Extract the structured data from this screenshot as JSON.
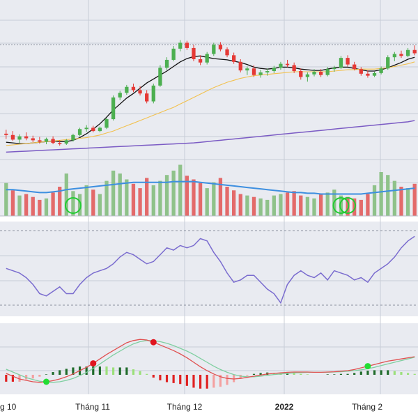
{
  "colors": {
    "panel_bg": "#e9ebf1",
    "grid": "#c8ccd6",
    "up": "#4caf50",
    "down": "#e53935",
    "vol_up": "#8fc28a",
    "vol_down": "#e36a6a",
    "ma_short": "#111111",
    "ma_mid": "#f2c14e",
    "ma_long": "#7b5bc4",
    "vol_ma": "#3d8fe0",
    "rsi": "#7a6ccf",
    "macd": "#e05050",
    "signal": "#7fcfa0",
    "dot_red": "#e0141e",
    "dot_green": "#22dd33",
    "circle": "#22cc33"
  },
  "chart_data": [
    {
      "type": "candlestick",
      "panel": "price",
      "x_labels": [
        "g 10",
        "Tháng 11",
        "Tháng 12",
        "2022",
        "Tháng 2"
      ],
      "grid": true,
      "candles": [
        [
          56,
          56.6,
          55.2,
          55.8
        ],
        [
          55.8,
          56.4,
          54.9,
          55.1
        ],
        [
          55.1,
          55.9,
          54.6,
          55.6
        ],
        [
          55.6,
          56.2,
          55.0,
          55.3
        ],
        [
          55.3,
          55.7,
          54.7,
          55.0
        ],
        [
          55.0,
          55.5,
          54.5,
          54.8
        ],
        [
          54.8,
          55.4,
          54.4,
          55.2
        ],
        [
          55.2,
          55.6,
          54.4,
          54.6
        ],
        [
          54.6,
          55.0,
          54.2,
          54.5
        ],
        [
          54.5,
          55.2,
          54.3,
          55.0
        ],
        [
          55.0,
          56.0,
          54.8,
          55.8
        ],
        [
          55.8,
          56.9,
          55.6,
          56.7
        ],
        [
          56.7,
          57.3,
          56.3,
          56.9
        ],
        [
          56.9,
          57.2,
          56.2,
          56.4
        ],
        [
          56.4,
          57.1,
          56.2,
          56.9
        ],
        [
          56.9,
          58.4,
          56.7,
          58.2
        ],
        [
          58.2,
          61.8,
          58.0,
          61.5
        ],
        [
          61.5,
          62.5,
          61.1,
          62.2
        ],
        [
          62.2,
          63.4,
          61.9,
          63.1
        ],
        [
          63.1,
          63.6,
          62.3,
          62.6
        ],
        [
          62.6,
          63.2,
          61.8,
          62.1
        ],
        [
          62.1,
          62.6,
          60.6,
          60.9
        ],
        [
          60.9,
          63.6,
          60.6,
          63.3
        ],
        [
          63.3,
          66.4,
          63.1,
          66.0
        ],
        [
          66.0,
          67.6,
          65.7,
          67.2
        ],
        [
          67.2,
          69.3,
          67.0,
          68.9
        ],
        [
          68.9,
          70.2,
          68.5,
          69.8
        ],
        [
          69.8,
          70.1,
          68.7,
          69.0
        ],
        [
          69.0,
          69.5,
          67.0,
          67.3
        ],
        [
          67.3,
          67.9,
          66.4,
          66.8
        ],
        [
          66.8,
          68.4,
          66.5,
          68.1
        ],
        [
          68.1,
          69.8,
          67.8,
          69.5
        ],
        [
          69.5,
          69.9,
          68.5,
          68.8
        ],
        [
          68.8,
          69.1,
          67.6,
          67.9
        ],
        [
          67.9,
          68.3,
          66.6,
          66.9
        ],
        [
          66.9,
          67.3,
          65.3,
          65.6
        ],
        [
          65.6,
          66.2,
          64.9,
          65.9
        ],
        [
          65.9,
          66.4,
          64.6,
          64.9
        ],
        [
          64.9,
          65.7,
          64.5,
          65.3
        ],
        [
          65.3,
          65.9,
          64.8,
          65.5
        ],
        [
          65.5,
          66.3,
          65.2,
          66.0
        ],
        [
          66.0,
          66.9,
          65.7,
          66.6
        ],
        [
          66.6,
          67.2,
          66.1,
          66.4
        ],
        [
          66.4,
          66.8,
          65.2,
          65.5
        ],
        [
          65.5,
          65.9,
          64.2,
          64.6
        ],
        [
          64.6,
          65.3,
          63.9,
          65.0
        ],
        [
          65.0,
          65.8,
          64.7,
          65.4
        ],
        [
          65.4,
          65.8,
          64.6,
          64.9
        ],
        [
          64.9,
          66.1,
          64.7,
          65.8
        ],
        [
          65.8,
          66.3,
          65.4,
          66.0
        ],
        [
          66.0,
          67.8,
          65.8,
          67.5
        ],
        [
          67.5,
          67.9,
          66.2,
          66.5
        ],
        [
          66.5,
          66.9,
          65.6,
          65.8
        ],
        [
          65.8,
          66.1,
          64.8,
          65.1
        ],
        [
          65.1,
          65.6,
          64.5,
          64.8
        ],
        [
          64.8,
          65.4,
          64.6,
          65.2
        ],
        [
          65.2,
          66.2,
          65.0,
          65.9
        ],
        [
          65.9,
          67.9,
          65.7,
          67.6
        ],
        [
          67.6,
          68.4,
          67.0,
          68.1
        ],
        [
          68.1,
          68.6,
          67.5,
          67.8
        ],
        [
          67.8,
          69.0,
          67.6,
          68.7
        ],
        [
          68.7,
          69.4,
          67.9,
          68.2
        ]
      ]
    },
    {
      "type": "line",
      "panel": "price",
      "series": [
        {
          "values": [
            54.7,
            54.6,
            54.5,
            54.5,
            54.6,
            54.7,
            54.8,
            54.9,
            54.8,
            54.8,
            55.0,
            55.4,
            56.0,
            56.7,
            57.5,
            58.5,
            59.6,
            60.5,
            61.4,
            62.1,
            62.9,
            63.7,
            64.3,
            64.9,
            65.5,
            66.2,
            66.9,
            67.4,
            67.7,
            67.8,
            67.6,
            67.4,
            67.3,
            67.2,
            67.0,
            66.8,
            66.5,
            66.1,
            65.9,
            65.8,
            65.9,
            66.1,
            66.1,
            66.0,
            65.8,
            65.7,
            65.6,
            65.6,
            65.8,
            66.0,
            66.1,
            66.1,
            65.9,
            65.7,
            65.5,
            65.5,
            65.7,
            66.0,
            66.4,
            66.8,
            67.3,
            67.6
          ]
        },
        {
          "values": [
            54.2,
            54.3,
            54.4,
            54.5,
            54.6,
            54.7,
            54.8,
            54.9,
            55.0,
            55.1,
            55.2,
            55.3,
            55.4,
            55.6,
            55.8,
            56.1,
            56.4,
            56.8,
            57.2,
            57.6,
            58.0,
            58.4,
            58.8,
            59.2,
            59.6,
            60.0,
            60.5,
            61.0,
            61.5,
            62.0,
            62.5,
            63.0,
            63.4,
            63.8,
            64.1,
            64.4,
            64.6,
            64.8,
            64.9,
            65.0,
            65.1,
            65.2,
            65.3,
            65.4,
            65.4,
            65.4,
            65.4,
            65.4,
            65.4,
            65.5,
            65.6,
            65.7,
            65.7,
            65.8,
            65.8,
            65.8,
            65.9,
            66.0,
            66.2,
            66.4,
            66.6,
            66.9
          ]
        },
        {
          "values": [
            53.2,
            53.25,
            53.3,
            53.35,
            53.4,
            53.45,
            53.5,
            53.55,
            53.6,
            53.65,
            53.7,
            53.75,
            53.8,
            53.85,
            53.9,
            53.95,
            54.0,
            54.05,
            54.1,
            54.15,
            54.2,
            54.25,
            54.3,
            54.35,
            54.4,
            54.45,
            54.5,
            54.55,
            54.6,
            54.7,
            54.8,
            54.9,
            55.0,
            55.1,
            55.2,
            55.3,
            55.4,
            55.5,
            55.6,
            55.7,
            55.8,
            55.9,
            56.0,
            56.1,
            56.2,
            56.3,
            56.4,
            56.5,
            56.6,
            56.7,
            56.8,
            56.9,
            57.0,
            57.1,
            57.2,
            57.3,
            57.4,
            57.5,
            57.6,
            57.7,
            57.8,
            58.0
          ]
        }
      ]
    },
    {
      "type": "bar",
      "panel": "volume",
      "values": [
        45,
        35,
        28,
        30,
        26,
        22,
        24,
        32,
        40,
        58,
        34,
        30,
        42,
        36,
        30,
        48,
        62,
        58,
        50,
        44,
        38,
        52,
        42,
        48,
        56,
        62,
        70,
        55,
        50,
        45,
        38,
        46,
        52,
        40,
        35,
        30,
        28,
        26,
        24,
        22,
        28,
        30,
        32,
        34,
        28,
        26,
        24,
        30,
        32,
        36,
        28,
        26,
        24,
        22,
        30,
        42,
        60,
        56,
        48,
        40,
        38,
        44
      ],
      "up": [
        true,
        false,
        true,
        false,
        false,
        false,
        true,
        false,
        false,
        true,
        true,
        true,
        true,
        false,
        true,
        true,
        true,
        true,
        true,
        false,
        false,
        false,
        true,
        true,
        true,
        true,
        true,
        false,
        false,
        false,
        true,
        true,
        false,
        false,
        false,
        false,
        true,
        false,
        true,
        true,
        true,
        true,
        false,
        false,
        false,
        true,
        true,
        false,
        true,
        true,
        true,
        false,
        false,
        false,
        false,
        true,
        true,
        true,
        true,
        false,
        true,
        false
      ],
      "moving_average": [
        36,
        36,
        35,
        34,
        33,
        32,
        32,
        33,
        34,
        36,
        37,
        38,
        39,
        40,
        41,
        42,
        43,
        44,
        45,
        46,
        46,
        46,
        46,
        46,
        46,
        47,
        47,
        47,
        47,
        46,
        45,
        44,
        43,
        42,
        41,
        40,
        39,
        38,
        37,
        36,
        35,
        34,
        33,
        32,
        32,
        31,
        31,
        30,
        30,
        30,
        30,
        30,
        30,
        30,
        31,
        32,
        33,
        34,
        35,
        36,
        37,
        38
      ]
    },
    {
      "type": "line",
      "panel": "rsi",
      "values": [
        52,
        50,
        48,
        44,
        38,
        30,
        28,
        32,
        36,
        30,
        30,
        38,
        44,
        48,
        50,
        52,
        56,
        62,
        66,
        64,
        60,
        56,
        58,
        64,
        70,
        68,
        72,
        70,
        72,
        78,
        76,
        66,
        58,
        48,
        40,
        42,
        46,
        46,
        40,
        34,
        30,
        22,
        38,
        46,
        50,
        46,
        44,
        48,
        42,
        50,
        48,
        46,
        42,
        44,
        40,
        48,
        52,
        56,
        62,
        70,
        76,
        80
      ]
    },
    {
      "type": "line",
      "panel": "macd",
      "series": [
        {
          "values": [
            -0.1,
            -0.2,
            -0.3,
            -0.35,
            -0.4,
            -0.42,
            -0.4,
            -0.36,
            -0.3,
            -0.22,
            -0.12,
            0,
            0.12,
            0.26,
            0.42,
            0.58,
            0.72,
            0.86,
            1.0,
            1.08,
            1.12,
            1.1,
            1.02,
            0.92,
            0.82,
            0.72,
            0.6,
            0.46,
            0.3,
            0.14,
            0.0,
            -0.12,
            -0.22,
            -0.28,
            -0.3,
            -0.28,
            -0.24,
            -0.2,
            -0.16,
            -0.12,
            -0.1,
            -0.08,
            -0.06,
            -0.05,
            -0.05,
            -0.05,
            -0.06,
            -0.06,
            -0.05,
            -0.04,
            -0.02,
            0.0,
            0.04,
            0.1,
            0.16,
            0.22,
            0.28,
            0.34,
            0.38,
            0.42,
            0.46,
            0.5
          ]
        },
        {
          "values": [
            0.05,
            -0.05,
            -0.15,
            -0.25,
            -0.32,
            -0.38,
            -0.41,
            -0.42,
            -0.4,
            -0.35,
            -0.28,
            -0.18,
            -0.06,
            0.08,
            0.24,
            0.4,
            0.56,
            0.7,
            0.84,
            0.96,
            1.04,
            1.08,
            1.08,
            1.04,
            0.98,
            0.9,
            0.8,
            0.7,
            0.58,
            0.44,
            0.3,
            0.16,
            0.04,
            -0.06,
            -0.14,
            -0.2,
            -0.22,
            -0.22,
            -0.2,
            -0.17,
            -0.14,
            -0.12,
            -0.1,
            -0.08,
            -0.07,
            -0.06,
            -0.06,
            -0.06,
            -0.06,
            -0.05,
            -0.04,
            -0.02,
            0.0,
            0.03,
            0.07,
            0.12,
            0.18,
            0.24,
            0.3,
            0.36,
            0.42,
            0.48
          ]
        }
      ],
      "signal_dots": [
        {
          "index": 13,
          "type": "sell"
        },
        {
          "index": 22,
          "type": "sell"
        },
        {
          "index": 6,
          "type": "buy"
        },
        {
          "index": 54,
          "type": "buy"
        }
      ]
    }
  ]
}
